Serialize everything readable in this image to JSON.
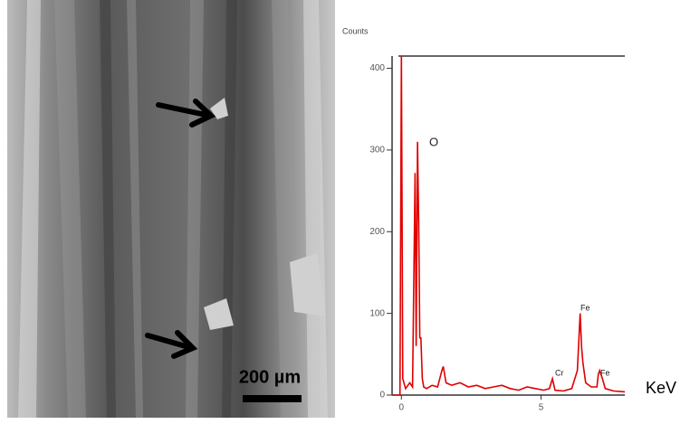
{
  "image": {
    "scale_bar": "200 µm"
  },
  "chart_data": {
    "type": "line",
    "y_label": "Counts",
    "x_label": "KeV",
    "x": [
      -0.3,
      -0.05,
      0,
      0.05,
      0.15,
      0.3,
      0.4,
      0.49,
      0.53,
      0.58,
      0.62,
      0.66,
      0.7,
      0.75,
      0.8,
      0.9,
      1.1,
      1.3,
      1.45,
      1.5,
      1.6,
      1.8,
      2.1,
      2.4,
      2.7,
      3.0,
      3.3,
      3.6,
      3.9,
      4.2,
      4.5,
      4.8,
      5.1,
      5.3,
      5.41,
      5.5,
      5.8,
      6.1,
      6.3,
      6.4,
      6.45,
      6.5,
      6.6,
      6.8,
      7.0,
      7.05,
      7.1,
      7.2,
      7.3,
      7.6,
      8.0
    ],
    "series": [
      {
        "color": "#e00000",
        "values": [
          0,
          0,
          415,
          20,
          8,
          15,
          10,
          272,
          60,
          310,
          210,
          70,
          70,
          20,
          10,
          8,
          12,
          10,
          30,
          35,
          15,
          12,
          15,
          10,
          12,
          8,
          10,
          12,
          8,
          6,
          10,
          8,
          6,
          8,
          20,
          6,
          5,
          8,
          30,
          100,
          60,
          40,
          15,
          10,
          10,
          25,
          30,
          20,
          8,
          5,
          4
        ]
      }
    ],
    "peak_labels": [
      "O",
      "Cr",
      "Fe",
      "Fe"
    ],
    "xlim": [
      -0.3,
      8.0
    ],
    "xticks": [
      0,
      5
    ],
    "ylim": [
      0,
      415
    ],
    "yticks": [
      0,
      100,
      200,
      300,
      400
    ]
  }
}
